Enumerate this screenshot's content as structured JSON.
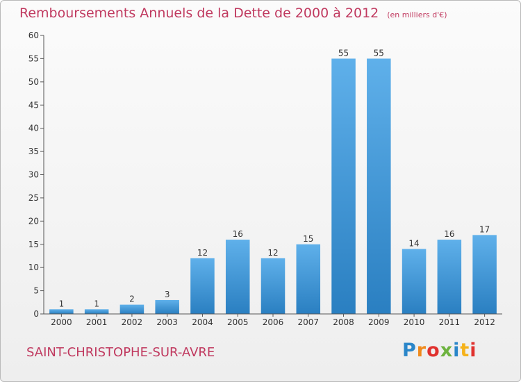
{
  "title": {
    "main": "Remboursements Annuels de la Dette de 2000 à 2012",
    "unit": "(en milliers d'€)"
  },
  "commune": "SAINT-CHRISTOPHE-SUR-AVRE",
  "logo": {
    "text": "Proxiti",
    "letter_colors": [
      "#2a86c9",
      "#f08a1c",
      "#e0312e",
      "#6db33f",
      "#2a86c9",
      "#f5b21b",
      "#e0312e"
    ]
  },
  "chart_data": {
    "type": "bar",
    "categories": [
      "2000",
      "2001",
      "2002",
      "2003",
      "2004",
      "2005",
      "2006",
      "2007",
      "2008",
      "2009",
      "2010",
      "2011",
      "2012"
    ],
    "values": [
      1,
      1,
      2,
      3,
      12,
      16,
      12,
      15,
      55,
      55,
      14,
      16,
      17
    ],
    "yticks": [
      0,
      5,
      10,
      15,
      20,
      25,
      30,
      35,
      40,
      45,
      50,
      55,
      60
    ],
    "ylim": [
      0,
      60
    ],
    "grid": false,
    "bar_color": "#3b95d6",
    "title": "Remboursements Annuels de la Dette de 2000 à 2012",
    "xlabel": "",
    "ylabel": ""
  }
}
